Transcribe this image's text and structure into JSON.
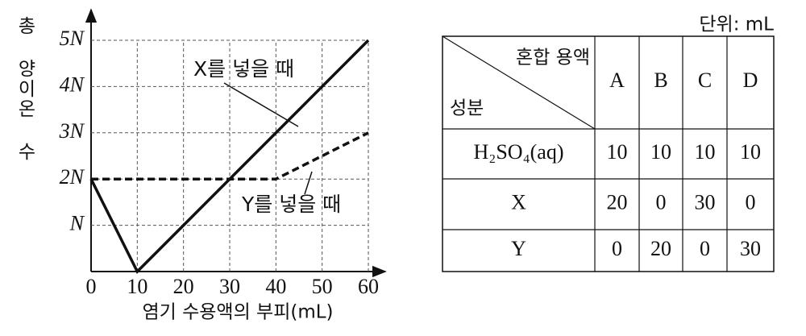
{
  "chart_data": {
    "type": "line",
    "ylabel": "총 양이온 수",
    "xlabel": "염기 수용액의 부피(mL)",
    "xlim": [
      0,
      60
    ],
    "xticks": [
      0,
      10,
      20,
      30,
      40,
      50,
      60
    ],
    "ylim": [
      0,
      5
    ],
    "yticks": [
      {
        "value": 1,
        "label": "N"
      },
      {
        "value": 2,
        "label": "2N"
      },
      {
        "value": 3,
        "label": "3N"
      },
      {
        "value": 4,
        "label": "4N"
      },
      {
        "value": 5,
        "label": "5N"
      }
    ],
    "grid": true,
    "series": [
      {
        "name": "X를 넣을 때",
        "color": "#111111",
        "style": "solid",
        "x": [
          0,
          10,
          60
        ],
        "values": [
          2,
          0,
          5
        ]
      },
      {
        "name": "Y를 넣을 때",
        "color": "#111111",
        "style": "dashed",
        "x": [
          0,
          40,
          60
        ],
        "values": [
          2,
          2,
          3
        ]
      }
    ]
  },
  "table": {
    "unit": "단위: mL",
    "corner_top": "혼합 용액",
    "corner_bottom": "성분",
    "columns": [
      "A",
      "B",
      "C",
      "D"
    ],
    "rows": [
      {
        "label": "H₂SO₄(aq)",
        "values": [
          10,
          10,
          10,
          10
        ]
      },
      {
        "label": "X",
        "values": [
          20,
          0,
          30,
          0
        ]
      },
      {
        "label": "Y",
        "values": [
          0,
          20,
          0,
          30
        ]
      }
    ]
  }
}
